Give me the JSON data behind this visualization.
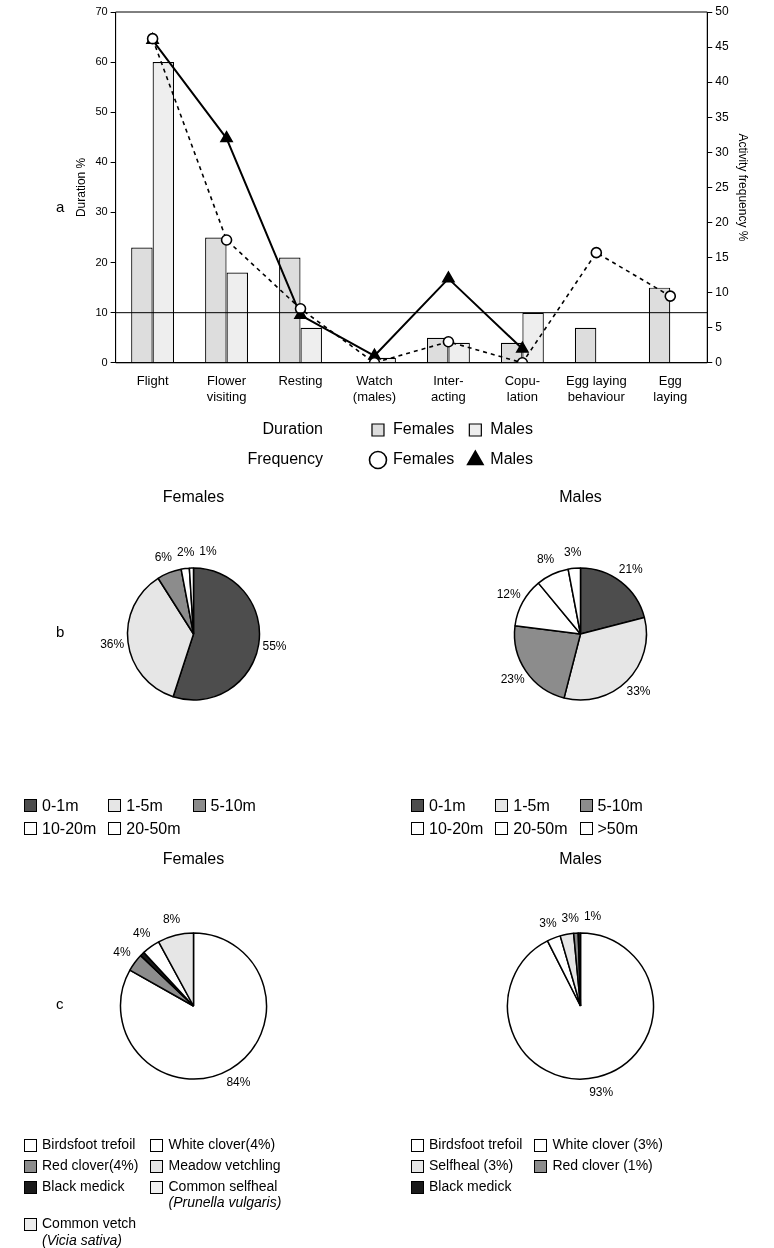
{
  "chart_data": [
    {
      "type": "bar",
      "annotations": [
        "a",
        "Duration",
        "Frequency"
      ],
      "ylabel": "Duration %",
      "y2label": "Activity frequency %",
      "categories": [
        "Flight",
        "Flower\nvisiting",
        "Resting",
        "Watch\n(males)",
        "Inter-\nacting",
        "Copu-\nlation",
        "Egg laying\nbehaviour",
        "Egg\nlaying"
      ],
      "series": [
        {
          "name": "Females",
          "type": "bar",
          "color": "#dddddd",
          "values": [
            23,
            25,
            21,
            null,
            5,
            4,
            7,
            15
          ]
        },
        {
          "name": "Males",
          "type": "bar",
          "color": "#eeeeee",
          "values": [
            60,
            18,
            7,
            1,
            4,
            10,
            null,
            null
          ]
        },
        {
          "name": "Females",
          "type": "line",
          "axis": "y2",
          "color": "#000000",
          "marker": "circle",
          "line_style": "dashed",
          "values": [
            46.2,
            17.5,
            7.7,
            0,
            3,
            0,
            15.7,
            9.5
          ]
        },
        {
          "name": "Males",
          "type": "line",
          "axis": "y2",
          "color": "#000000",
          "marker": "triangle",
          "line_style": "solid",
          "values": [
            46,
            32,
            6.8,
            1,
            12,
            2,
            null,
            null
          ]
        }
      ],
      "ylim": [
        0,
        70
      ],
      "yticks": [
        0,
        10,
        20,
        30,
        40,
        50,
        60,
        70
      ],
      "y2lim": [
        0,
        50
      ],
      "y2ticks": [
        0,
        5,
        10,
        15,
        20,
        25,
        30,
        35,
        40,
        45,
        50
      ],
      "ref_lines": [
        {
          "axis": "y",
          "value": 10,
          "color": "#000000"
        }
      ],
      "grid": false,
      "legend": "bottom"
    },
    {
      "type": "pie",
      "title": "Females",
      "annotations": [
        "b"
      ],
      "categories": [
        "0-1m",
        "1-5m",
        "5-10m",
        "10-20m",
        "20-50m"
      ],
      "values": [
        55,
        36,
        6,
        2,
        1
      ],
      "value_labels": [
        "55%",
        "36%",
        "6%",
        "2%",
        "1%"
      ],
      "colors": [
        "#4d4d4d",
        "#e6e6e6",
        "#8c8c8c",
        "#ffffff",
        "#ffffff"
      ],
      "legend": "bottom"
    },
    {
      "type": "pie",
      "title": "Males",
      "categories": [
        "0-1m",
        "1-5m",
        "5-10m",
        "10-20m",
        "20-50m",
        ">50m"
      ],
      "values": [
        21,
        33,
        23,
        12,
        8,
        3
      ],
      "value_labels": [
        "21%",
        "33%",
        "23%",
        "12%",
        "8%",
        "3%"
      ],
      "colors": [
        "#4d4d4d",
        "#e6e6e6",
        "#8c8c8c",
        "#ffffff",
        "#ffffff",
        "#ffffff"
      ],
      "legend": "bottom"
    },
    {
      "type": "pie",
      "title": "Females",
      "annotations": [
        "c"
      ],
      "categories": [
        "Birdsfoot trefoil",
        "Red clover(4%)",
        "Black medick",
        "Common vetch\n(Vicia sativa)",
        "White clover(4%)",
        "Meadow vetchling",
        "Common selfheal\n(Prunella vulgaris)"
      ],
      "values": [
        84,
        4,
        1,
        0,
        4,
        8,
        0
      ],
      "value_labels": [
        "84%",
        "4%",
        null,
        null,
        "4%",
        "8%",
        null
      ],
      "colors": [
        "#ffffff",
        "#8c8c8c",
        "#1a1a1a",
        "#ececec",
        "#ffffff",
        "#e6e6e6",
        "#f0f0f0"
      ],
      "legend": "bottom"
    },
    {
      "type": "pie",
      "title": "Males",
      "categories": [
        "Birdsfoot trefoil",
        "White clover (3%)",
        "Selfheal (3%)",
        "Red clover (1%)",
        "Black medick"
      ],
      "values": [
        93,
        3,
        3,
        1,
        0.5
      ],
      "value_labels": [
        "93%",
        "3%",
        "3%",
        "1%",
        null
      ],
      "colors": [
        "#ffffff",
        "#ffffff",
        "#e6e6e6",
        "#8c8c8c",
        "#1a1a1a"
      ],
      "legend": "bottom"
    }
  ]
}
